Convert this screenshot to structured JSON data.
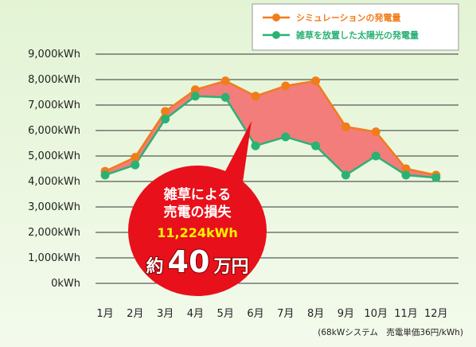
{
  "chart_data": {
    "type": "line",
    "categories": [
      "1月",
      "2月",
      "3月",
      "4月",
      "5月",
      "6月",
      "7月",
      "8月",
      "9月",
      "10月",
      "11月",
      "12月"
    ],
    "yticks": [
      "0kWh",
      "1,000kWh",
      "2,000kWh",
      "3,000kWh",
      "4,000kWh",
      "5,000kWh",
      "6,000kWh",
      "7,000kWh",
      "8,000kWh",
      "9,000kWh"
    ],
    "ylim": [
      0,
      9000
    ],
    "grid": true,
    "legend_position": "top-right",
    "series": [
      {
        "name": "シミュレーションの発電量",
        "color": "#f07d1a",
        "values": [
          4400,
          4950,
          6750,
          7600,
          7950,
          7350,
          7750,
          7950,
          6150,
          5950,
          4500,
          4250
        ]
      },
      {
        "name": "雑草を放置した太陽光の発電量",
        "color": "#2ab275",
        "values": [
          4250,
          4650,
          6450,
          7350,
          7300,
          5400,
          5750,
          5400,
          4250,
          5000,
          4250,
          4150
        ]
      }
    ],
    "loss_fill_color": "#f27d7b",
    "note": "(68kWシステム　売電単価36円/kWh)",
    "callout": {
      "line1": "雑草による",
      "line2": "売電の損失",
      "line3": "11,224kWh",
      "prefix": "約",
      "amount": "40",
      "unit": "万円",
      "color": "#e8101a"
    }
  }
}
